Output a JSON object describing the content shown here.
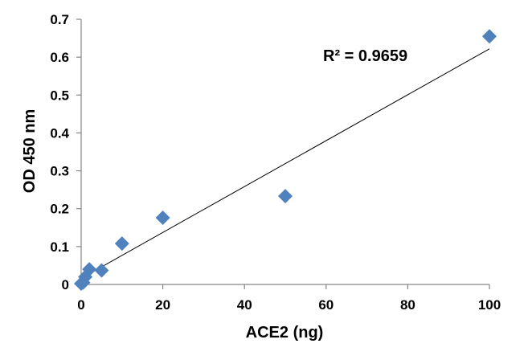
{
  "chart_data": {
    "type": "scatter",
    "xlabel": "ACE2 (ng)",
    "ylabel": "OD 450 nm",
    "xlim": [
      0,
      100
    ],
    "ylim": [
      0,
      0.7
    ],
    "x_ticks": [
      0,
      20,
      40,
      60,
      80,
      100
    ],
    "y_ticks": [
      0,
      0.1,
      0.2,
      0.3,
      0.4,
      0.5,
      0.6,
      0.7
    ],
    "x_tick_labels": [
      "0",
      "20",
      "40",
      "60",
      "80",
      "100"
    ],
    "y_tick_labels": [
      "0",
      "0.1",
      "0.2",
      "0.3",
      "0.4",
      "0.5",
      "0.6",
      "0.7"
    ],
    "grid": false,
    "legend": "none",
    "marker": "diamond",
    "marker_color": "#4F81BD",
    "series": [
      {
        "x": [
          0,
          0.5,
          1,
          2,
          5,
          10,
          20,
          50,
          100
        ],
        "y": [
          0.002,
          0.005,
          0.02,
          0.04,
          0.037,
          0.108,
          0.176,
          0.233,
          0.655
        ]
      }
    ],
    "trendline": {
      "type": "linear",
      "x": [
        0,
        100
      ],
      "y": [
        0.016,
        0.622
      ],
      "color": "#000000"
    },
    "annotation": "R² = 0.9659"
  }
}
